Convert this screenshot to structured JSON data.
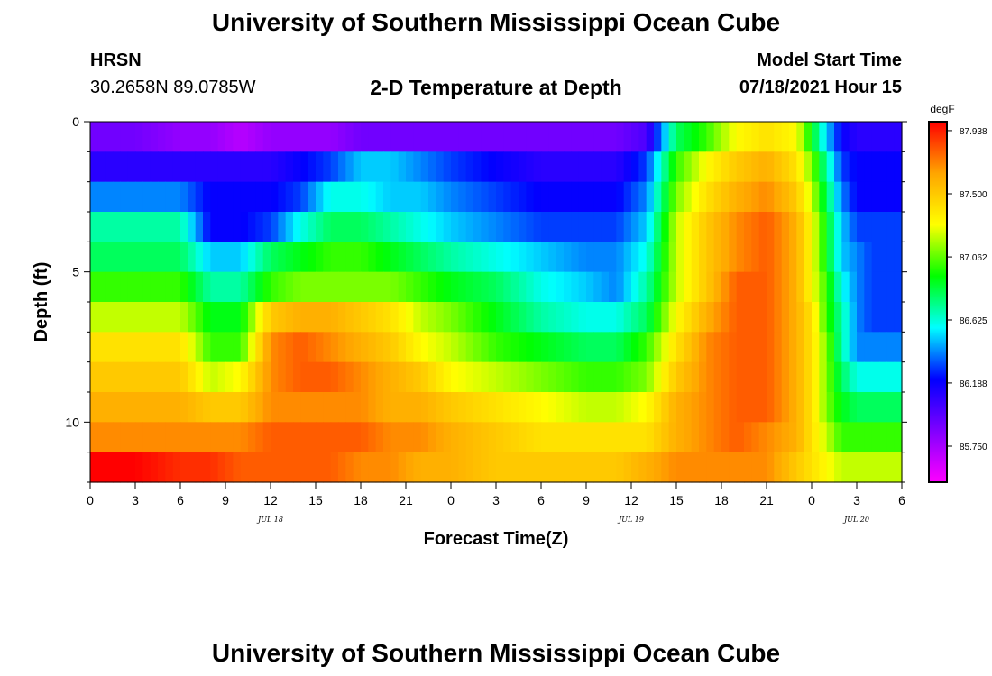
{
  "header": {
    "title": "University of Southern Mississippi Ocean Cube",
    "station": "HRSN",
    "coords": "30.2658N  89.0785W",
    "chart_title": "2-D Temperature at Depth",
    "model_label": "Model Start Time",
    "model_time": "07/18/2021 Hour 15"
  },
  "footer": {
    "title": "University of Southern Mississippi Ocean Cube"
  },
  "chart_data": {
    "type": "heatmap",
    "title": "2-D Temperature at Depth",
    "xlabel": "Forecast Time(Z)",
    "ylabel": "Depth (ft)",
    "x_ticks": [
      "0",
      "3",
      "6",
      "9",
      "12",
      "15",
      "18",
      "21",
      "0",
      "3",
      "6",
      "9",
      "12",
      "15",
      "18",
      "21",
      "0",
      "3",
      "6"
    ],
    "date_labels": [
      {
        "label": "JUL 18",
        "hour_index": 12
      },
      {
        "label": "JUL 19",
        "hour_index": 36
      },
      {
        "label": "JUL 20",
        "hour_index": 51
      }
    ],
    "y_ticks": [
      "0",
      "5",
      "10"
    ],
    "y_range_ft": [
      0,
      12
    ],
    "x_range_hours": [
      0,
      54
    ],
    "colorbar": {
      "unit": "degF",
      "min": 85.5,
      "max": 88.0,
      "labels": [
        "87.938",
        "87.500",
        "87.062",
        "86.625",
        "86.188",
        "85.750"
      ],
      "colors": [
        "#ff00ff",
        "#8000ff",
        "#0000ff",
        "#00ffff",
        "#00ff00",
        "#ffff00",
        "#ffa500",
        "#ff0000"
      ]
    },
    "depth_rows_ft": [
      0.5,
      1.5,
      2.5,
      3.5,
      4.5,
      5.5,
      6.5,
      7.5,
      8.5,
      9.5,
      10.5,
      11.5
    ],
    "profile_times_h": [
      0,
      3,
      6,
      8,
      10,
      12,
      14,
      16,
      18,
      20,
      22,
      24,
      27,
      30,
      33,
      35,
      37,
      39,
      41,
      43,
      45,
      47,
      48,
      49,
      50,
      51,
      52,
      54
    ],
    "profiles_degF": [
      [
        85.9,
        85.9,
        85.8,
        85.8,
        85.7,
        85.8,
        85.8,
        85.8,
        85.9,
        85.9,
        85.9,
        85.9,
        85.9,
        85.9,
        85.9,
        85.9,
        86.0,
        86.8,
        87.0,
        87.3,
        87.4,
        87.3,
        86.9,
        86.5,
        86.2,
        86.1,
        86.1,
        86.1
      ],
      [
        86.1,
        86.1,
        86.1,
        86.1,
        86.1,
        86.1,
        86.2,
        86.3,
        86.5,
        86.5,
        86.4,
        86.3,
        86.2,
        86.1,
        86.1,
        86.1,
        86.3,
        87.0,
        87.3,
        87.5,
        87.6,
        87.4,
        87.1,
        86.7,
        86.3,
        86.2,
        86.2,
        86.2
      ],
      [
        86.4,
        86.4,
        86.4,
        86.2,
        86.2,
        86.2,
        86.3,
        86.6,
        86.6,
        86.5,
        86.5,
        86.4,
        86.3,
        86.2,
        86.2,
        86.2,
        86.4,
        87.1,
        87.4,
        87.6,
        87.7,
        87.5,
        87.2,
        86.8,
        86.4,
        86.2,
        86.2,
        86.2
      ],
      [
        86.7,
        86.7,
        86.7,
        86.2,
        86.2,
        86.3,
        86.6,
        86.8,
        86.8,
        86.7,
        86.6,
        86.5,
        86.4,
        86.3,
        86.3,
        86.3,
        86.5,
        87.2,
        87.5,
        87.7,
        87.8,
        87.6,
        87.3,
        86.9,
        86.5,
        86.3,
        86.3,
        86.3
      ],
      [
        86.8,
        86.8,
        86.8,
        86.5,
        86.5,
        86.8,
        86.9,
        87.0,
        87.0,
        86.9,
        86.8,
        86.7,
        86.6,
        86.5,
        86.4,
        86.4,
        86.6,
        87.2,
        87.5,
        87.7,
        87.8,
        87.6,
        87.3,
        86.9,
        86.5,
        86.4,
        86.3,
        86.3
      ],
      [
        87.0,
        87.0,
        87.0,
        86.7,
        86.7,
        87.0,
        87.1,
        87.1,
        87.1,
        87.1,
        87.0,
        86.9,
        86.8,
        86.6,
        86.5,
        86.4,
        86.7,
        87.2,
        87.5,
        87.8,
        87.8,
        87.6,
        87.3,
        87.0,
        86.6,
        86.4,
        86.3,
        86.3
      ],
      [
        87.2,
        87.2,
        87.2,
        86.9,
        86.9,
        87.5,
        87.6,
        87.6,
        87.5,
        87.4,
        87.2,
        87.1,
        86.9,
        86.7,
        86.6,
        86.6,
        86.8,
        87.3,
        87.6,
        87.8,
        87.8,
        87.6,
        87.4,
        87.0,
        86.7,
        86.4,
        86.3,
        86.3
      ],
      [
        87.4,
        87.4,
        87.4,
        87.0,
        87.0,
        87.7,
        87.8,
        87.7,
        87.6,
        87.5,
        87.3,
        87.2,
        87.0,
        86.9,
        86.8,
        86.8,
        87.0,
        87.4,
        87.7,
        87.8,
        87.8,
        87.6,
        87.4,
        87.1,
        86.7,
        86.4,
        86.4,
        86.4
      ],
      [
        87.5,
        87.5,
        87.5,
        87.2,
        87.3,
        87.7,
        87.8,
        87.8,
        87.7,
        87.6,
        87.5,
        87.3,
        87.2,
        87.1,
        87.0,
        87.0,
        87.1,
        87.5,
        87.7,
        87.8,
        87.8,
        87.6,
        87.4,
        87.1,
        86.8,
        86.6,
        86.6,
        86.6
      ],
      [
        87.6,
        87.6,
        87.6,
        87.5,
        87.5,
        87.7,
        87.7,
        87.7,
        87.7,
        87.6,
        87.6,
        87.5,
        87.4,
        87.3,
        87.2,
        87.2,
        87.3,
        87.6,
        87.7,
        87.8,
        87.8,
        87.6,
        87.4,
        87.1,
        86.9,
        86.8,
        86.8,
        86.8
      ],
      [
        87.7,
        87.7,
        87.7,
        87.7,
        87.7,
        87.8,
        87.8,
        87.8,
        87.8,
        87.7,
        87.7,
        87.6,
        87.5,
        87.4,
        87.4,
        87.4,
        87.4,
        87.6,
        87.7,
        87.8,
        87.7,
        87.6,
        87.4,
        87.2,
        87.0,
        87.0,
        87.0,
        87.0
      ],
      [
        88.0,
        88.0,
        87.9,
        87.9,
        87.8,
        87.8,
        87.8,
        87.8,
        87.7,
        87.7,
        87.6,
        87.6,
        87.5,
        87.5,
        87.5,
        87.5,
        87.6,
        87.7,
        87.7,
        87.7,
        87.7,
        87.5,
        87.4,
        87.3,
        87.2,
        87.2,
        87.2,
        87.2
      ]
    ]
  }
}
